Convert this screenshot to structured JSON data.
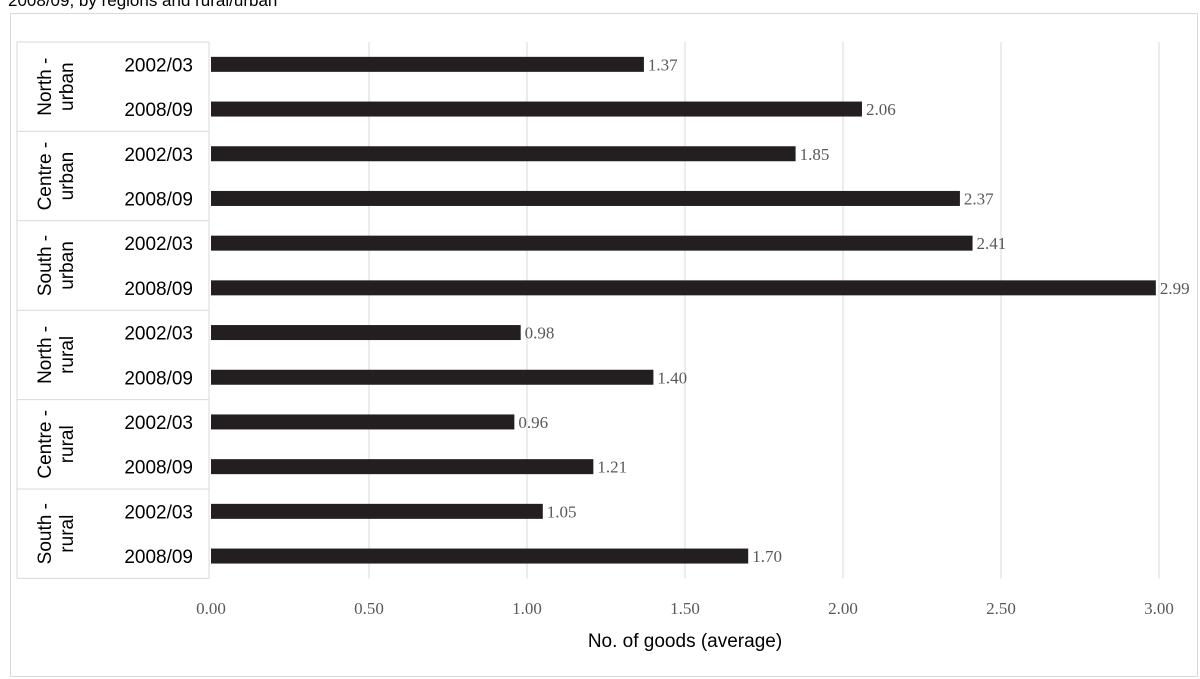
{
  "title": "2008/09, by regions and rural/urban",
  "chart_data": {
    "type": "bar",
    "orientation": "horizontal",
    "title": "2008/09, by regions and rural/urban",
    "xlabel": "No. of goods (average)",
    "ylabel": "",
    "xlim": [
      0,
      3
    ],
    "xticks": [
      "0.00",
      "0.50",
      "1.00",
      "1.50",
      "2.00",
      "2.50",
      "3.00"
    ],
    "grid": "vertical",
    "bar_color": "#231f20",
    "groups": [
      {
        "label_lines": [
          "North -",
          "urban"
        ],
        "rows": [
          {
            "category": "2002/03",
            "value": 1.37,
            "label": "1.37"
          },
          {
            "category": "2008/09",
            "value": 2.06,
            "label": "2.06"
          }
        ]
      },
      {
        "label_lines": [
          "Centre -",
          "urban"
        ],
        "rows": [
          {
            "category": "2002/03",
            "value": 1.85,
            "label": "1.85"
          },
          {
            "category": "2008/09",
            "value": 2.37,
            "label": "2.37"
          }
        ]
      },
      {
        "label_lines": [
          "South -",
          "urban"
        ],
        "rows": [
          {
            "category": "2002/03",
            "value": 2.41,
            "label": "2.41"
          },
          {
            "category": "2008/09",
            "value": 2.99,
            "label": "2.99"
          }
        ]
      },
      {
        "label_lines": [
          "North -",
          "rural"
        ],
        "rows": [
          {
            "category": "2002/03",
            "value": 0.98,
            "label": "0.98"
          },
          {
            "category": "2008/09",
            "value": 1.4,
            "label": "1.40"
          }
        ]
      },
      {
        "label_lines": [
          "Centre -",
          "rural"
        ],
        "rows": [
          {
            "category": "2002/03",
            "value": 0.96,
            "label": "0.96"
          },
          {
            "category": "2008/09",
            "value": 1.21,
            "label": "1.21"
          }
        ]
      },
      {
        "label_lines": [
          "South -",
          "rural"
        ],
        "rows": [
          {
            "category": "2002/03",
            "value": 1.05,
            "label": "1.05"
          },
          {
            "category": "2008/09",
            "value": 1.7,
            "label": "1.70"
          }
        ]
      }
    ]
  }
}
